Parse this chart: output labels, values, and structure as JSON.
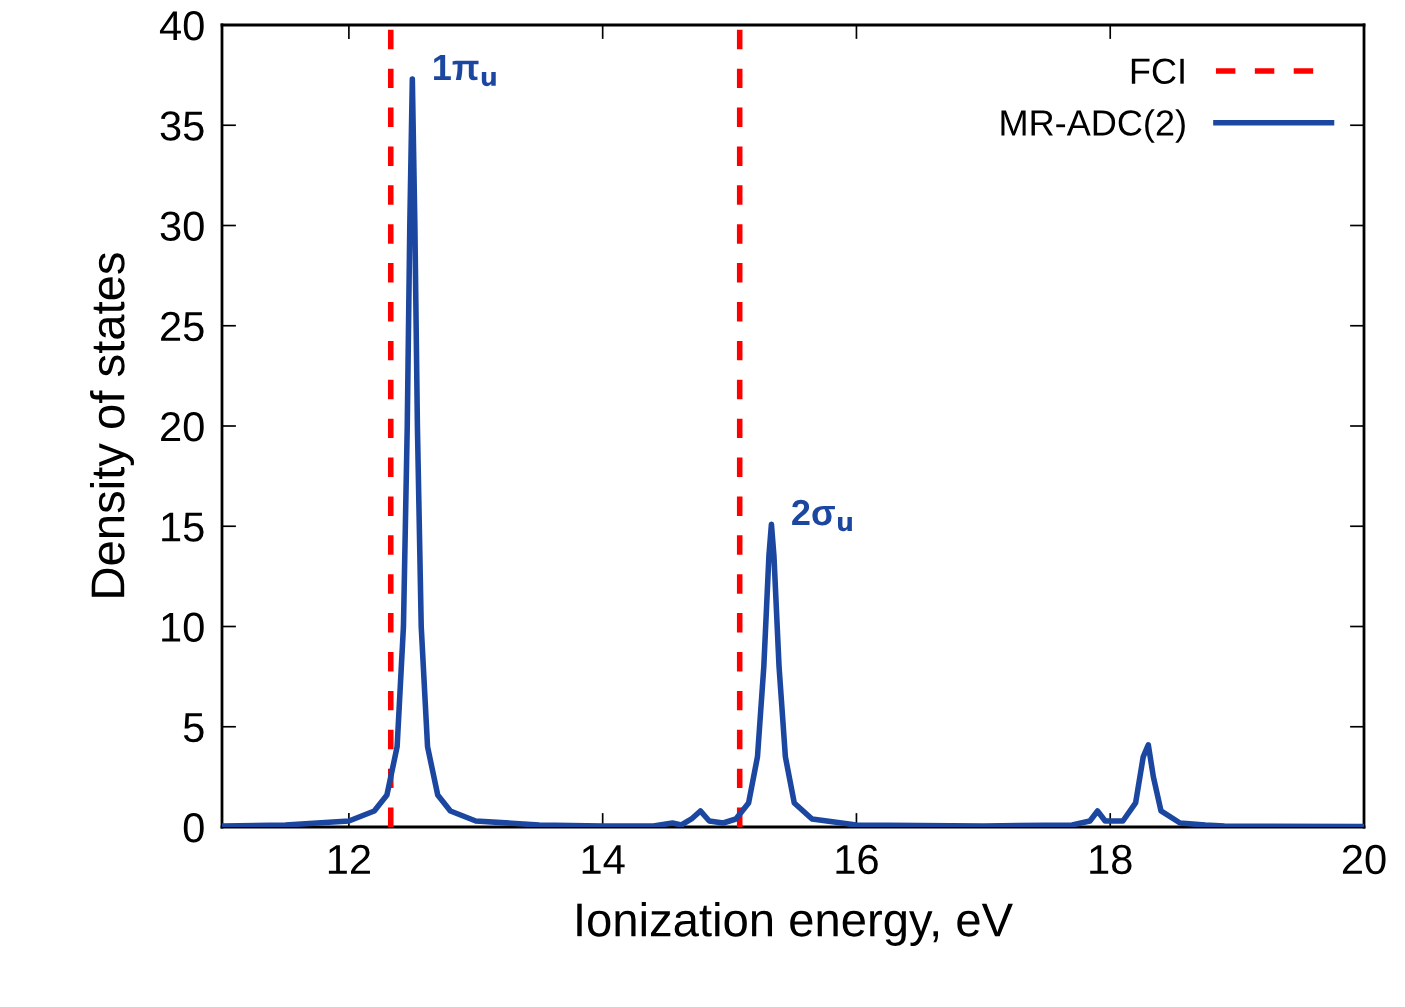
{
  "chart_data": {
    "type": "line",
    "xlabel": "Ionization energy, eV",
    "ylabel": "Density of states",
    "xlim": [
      11,
      20
    ],
    "ylim": [
      0,
      40
    ],
    "xticks": [
      12,
      14,
      16,
      18,
      20
    ],
    "yticks": [
      0,
      5,
      10,
      15,
      20,
      25,
      30,
      35,
      40
    ],
    "grid": false,
    "legend": "top right",
    "line_style": "solid",
    "marker": "none",
    "series": [
      {
        "name": "FCI",
        "color": "#ff0000",
        "line_style": "dashed",
        "x": [
          12.33,
          12.33,
          null,
          15.08,
          15.08
        ],
        "values": [
          0,
          40,
          null,
          0,
          40
        ]
      },
      {
        "name": "MR-ADC(2)",
        "color": "#1c47a0",
        "x": [
          11.0,
          11.5,
          12.0,
          12.2,
          12.3,
          12.38,
          12.43,
          12.46,
          12.48,
          12.5,
          12.52,
          12.54,
          12.57,
          12.62,
          12.7,
          12.8,
          13.0,
          13.5,
          14.0,
          14.4,
          14.55,
          14.62,
          14.7,
          14.77,
          14.84,
          14.95,
          15.05,
          15.15,
          15.22,
          15.27,
          15.31,
          15.33,
          15.35,
          15.39,
          15.44,
          15.51,
          15.65,
          16.0,
          17.0,
          17.7,
          17.84,
          17.9,
          17.96,
          18.1,
          18.2,
          18.26,
          18.3,
          18.34,
          18.4,
          18.55,
          18.75,
          18.9,
          20.0
        ],
        "values": [
          0.05,
          0.1,
          0.3,
          0.8,
          1.6,
          4,
          10,
          20,
          30,
          37.3,
          30,
          20,
          10,
          4,
          1.6,
          0.8,
          0.3,
          0.1,
          0.05,
          0.05,
          0.2,
          0.1,
          0.4,
          0.8,
          0.3,
          0.2,
          0.4,
          1.2,
          3.5,
          8,
          13.5,
          15.1,
          13.5,
          8,
          3.5,
          1.2,
          0.4,
          0.1,
          0.05,
          0.1,
          0.3,
          0.8,
          0.3,
          0.3,
          1.2,
          3.5,
          4.1,
          2.5,
          0.8,
          0.2,
          0.1,
          0.05,
          0.02
        ]
      }
    ],
    "annotations": [
      {
        "text": "1π$_{u}$",
        "x": 12.5,
        "y": 37.3
      },
      {
        "text": "2σ$_{u}$",
        "x": 15.33,
        "y": 15.1
      }
    ]
  }
}
